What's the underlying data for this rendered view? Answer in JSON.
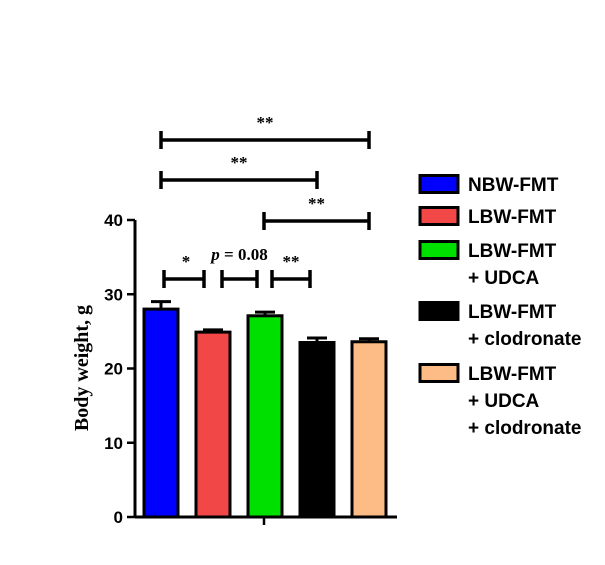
{
  "chart_data": {
    "type": "bar",
    "ylabel": "Body weight, g",
    "ylim": [
      0,
      40
    ],
    "yticks": [
      0,
      10,
      20,
      30,
      40
    ],
    "categories": [
      "NBW-FMT",
      "LBW-FMT",
      "LBW-FMT + UDCA",
      "LBW-FMT + clodronate",
      "LBW-FMT + UDCA + clodronate"
    ],
    "values": [
      28.0,
      24.9,
      27.1,
      23.5,
      23.6
    ],
    "errors": [
      1.0,
      0.3,
      0.5,
      0.6,
      0.4
    ],
    "colors": [
      "#0000ff",
      "#f24747",
      "#00e000",
      "#000000",
      "#fdbb85"
    ],
    "legend_position": "right",
    "legend": [
      {
        "lines": [
          "NBW-FMT"
        ]
      },
      {
        "lines": [
          "LBW-FMT"
        ]
      },
      {
        "lines": [
          "LBW-FMT",
          "+ UDCA"
        ]
      },
      {
        "lines": [
          "LBW-FMT",
          "+ clodronate"
        ]
      },
      {
        "lines": [
          "LBW-FMT",
          "+ UDCA",
          "+ clodronate"
        ]
      }
    ],
    "comparisons": [
      {
        "from": 0,
        "to": 4,
        "label": "**"
      },
      {
        "from": 0,
        "to": 3,
        "label": "**"
      },
      {
        "from": 2,
        "to": 4,
        "label": "**"
      },
      {
        "from": 0,
        "to": 1,
        "label": "*"
      },
      {
        "from": 1,
        "to": 2,
        "label": "p = 0.08"
      },
      {
        "from": 2,
        "to": 3,
        "label": "**"
      }
    ]
  }
}
